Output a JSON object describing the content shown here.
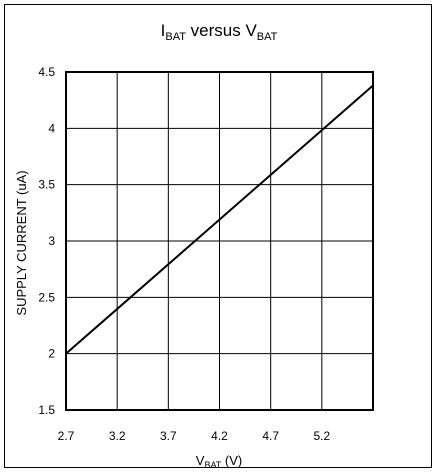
{
  "chart_data": {
    "type": "line",
    "title": {
      "main": "I",
      "sub": "BAT",
      "mid": " versus V",
      "sub2": "BAT"
    },
    "xlabel": {
      "main": "V",
      "sub": "BAT",
      "rest": " (V)"
    },
    "ylabel": "SUPPLY CURRENT (uA)",
    "xlim": [
      2.7,
      5.7
    ],
    "ylim": [
      1.5,
      4.5
    ],
    "x_ticks": [
      "2.7",
      "3.2",
      "3.7",
      "4.2",
      "4.7",
      "5.2"
    ],
    "y_ticks": [
      "1.5",
      "2",
      "2.5",
      "3",
      "3.5",
      "4",
      "4.5"
    ],
    "grid": true,
    "series": [
      {
        "x": [
          2.7,
          5.7
        ],
        "y": [
          2.0,
          4.38
        ]
      }
    ]
  },
  "colors": {
    "line": "#000000",
    "grid": "#000000",
    "frame": "#000000"
  }
}
